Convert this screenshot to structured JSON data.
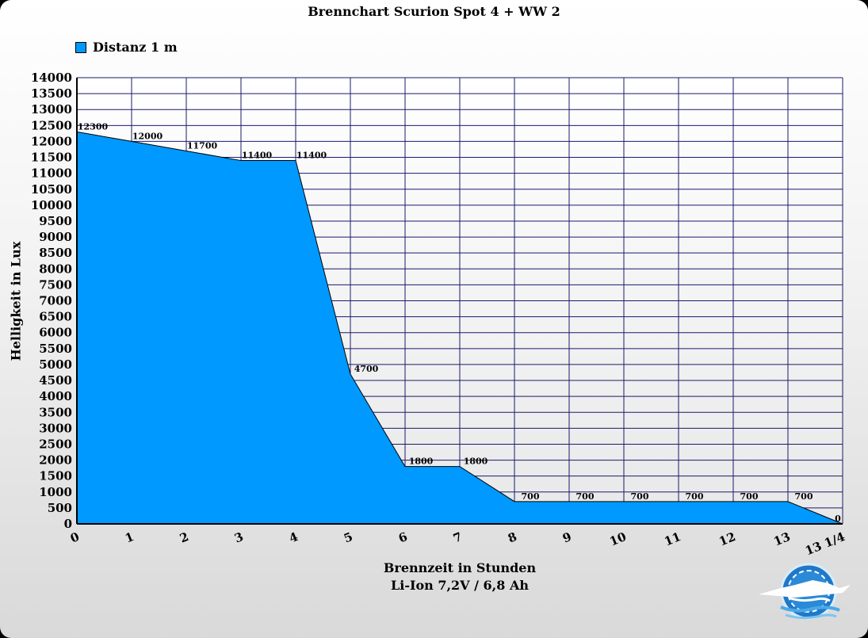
{
  "chart_data": {
    "type": "area",
    "title": "Brennchart Scurion Spot 4 + WW 2",
    "xlabel": "Brennzeit in Stunden",
    "xlabel2": "Li-Ion 7,2V / 6,8 Ah",
    "ylabel": "Helligkeit in Lux",
    "ylim": [
      0,
      14000
    ],
    "y_ticks": [
      "0",
      "500",
      "1000",
      "1500",
      "2000",
      "2500",
      "3000",
      "3500",
      "4000",
      "4500",
      "5000",
      "5500",
      "6000",
      "6500",
      "7000",
      "7500",
      "8000",
      "8500",
      "9000",
      "9500",
      "10000",
      "10500",
      "11000",
      "11500",
      "12000",
      "12500",
      "13000",
      "13500",
      "14000"
    ],
    "categories": [
      "0",
      "1",
      "2",
      "3",
      "4",
      "5",
      "6",
      "7",
      "8",
      "9",
      "10",
      "11",
      "12",
      "13",
      "13 1/4"
    ],
    "series": [
      {
        "name": "Distanz 1 m",
        "color": "#0099ff",
        "values": [
          12300,
          12000,
          11700,
          11400,
          11400,
          4700,
          1800,
          1800,
          700,
          700,
          700,
          700,
          700,
          700,
          0
        ]
      }
    ],
    "grid": true,
    "legend": "top-left"
  }
}
